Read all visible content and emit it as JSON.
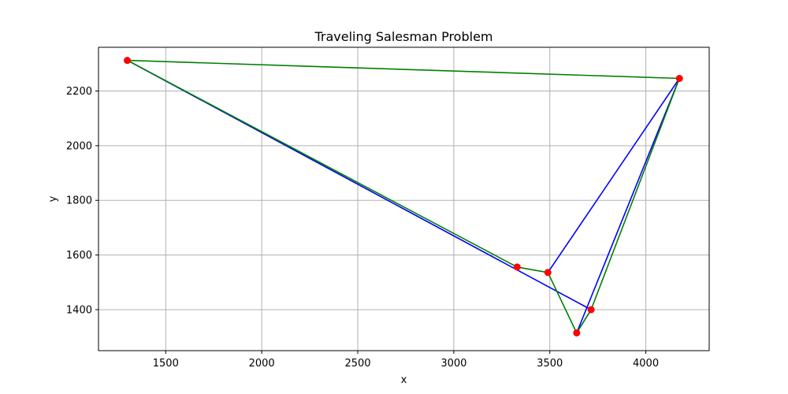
{
  "chart_data": {
    "type": "line",
    "title": "Traveling Salesman Problem",
    "xlabel": "x",
    "ylabel": "y",
    "xlim": [
      1150,
      4330
    ],
    "ylim": [
      1250,
      2360
    ],
    "xticks": [
      1500,
      2000,
      2500,
      3000,
      3500,
      4000
    ],
    "yticks": [
      1400,
      1600,
      1800,
      2000,
      2200
    ],
    "grid": true,
    "points": {
      "x": [
        1300,
        3330,
        3490,
        3640,
        3715,
        4175
      ],
      "y": [
        2312,
        1556,
        1536,
        1315,
        1400,
        2246
      ],
      "color": "#ff0000"
    },
    "series": [
      {
        "color": "#0000ff",
        "x": [
          1300,
          3715,
          3640,
          4175,
          3490
        ],
        "y": [
          2312,
          1400,
          1315,
          2246,
          1536
        ]
      },
      {
        "color": "#008000",
        "x": [
          1300,
          4175,
          3715,
          3640,
          3490,
          3330,
          1300
        ],
        "y": [
          2312,
          2246,
          1400,
          1315,
          1536,
          1556,
          2312
        ]
      }
    ]
  }
}
